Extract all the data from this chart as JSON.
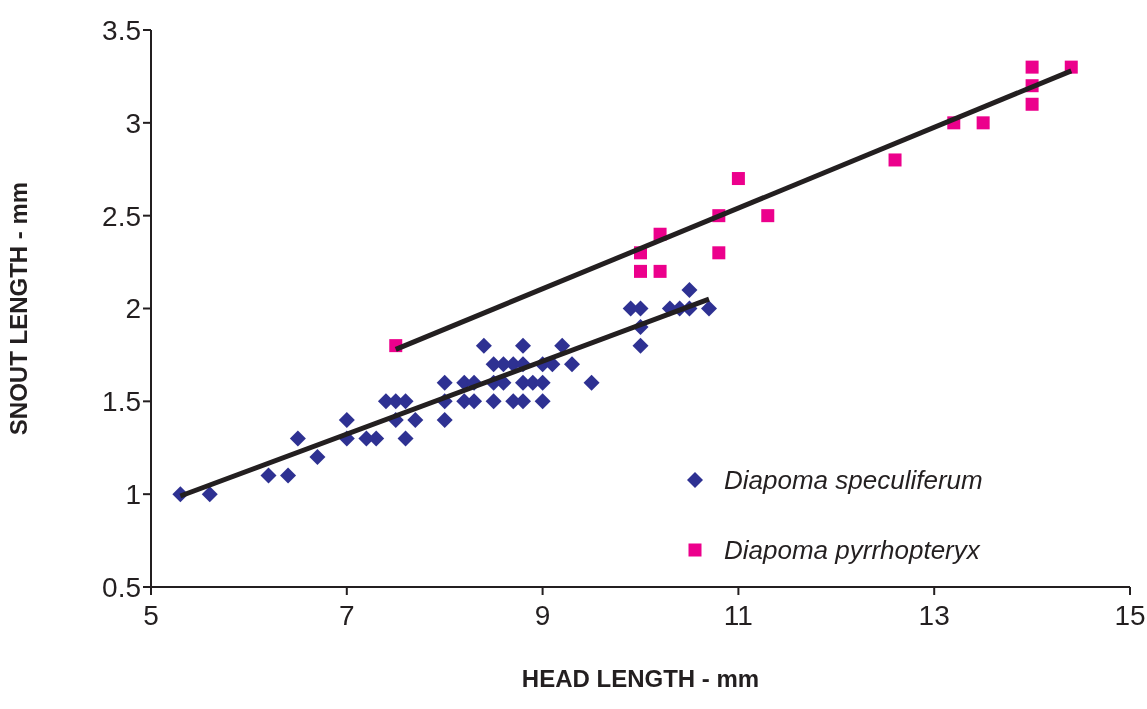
{
  "chart_data": {
    "type": "scatter",
    "xlabel": "HEAD LENGTH - mm",
    "ylabel": "SNOUT LENGTH - mm",
    "xlim": [
      5,
      15
    ],
    "xticks": [
      5,
      7,
      9,
      11,
      13,
      15
    ],
    "ylim": [
      0.5,
      3.5
    ],
    "yticks": [
      0.5,
      1,
      1.5,
      2,
      2.5,
      3,
      3.5
    ],
    "grid": false,
    "legend": "bottom right",
    "series": [
      {
        "name": "Diapoma speculiferum",
        "color": "#2e3192",
        "marker": "diamond",
        "x": [
          5.3,
          5.6,
          6.2,
          6.4,
          6.5,
          6.7,
          7.0,
          7.0,
          7.2,
          7.3,
          7.4,
          7.5,
          7.5,
          7.6,
          7.6,
          7.7,
          8.0,
          8.0,
          8.0,
          8.2,
          8.2,
          8.3,
          8.3,
          8.4,
          8.5,
          8.5,
          8.5,
          8.6,
          8.6,
          8.7,
          8.7,
          8.8,
          8.8,
          8.8,
          8.8,
          8.9,
          9.0,
          9.0,
          9.0,
          9.1,
          9.2,
          9.3,
          9.5,
          9.9,
          10.0,
          10.0,
          10.0,
          10.3,
          10.4,
          10.5,
          10.5,
          10.7
        ],
        "values": [
          1.0,
          1.0,
          1.1,
          1.1,
          1.3,
          1.2,
          1.4,
          1.3,
          1.3,
          1.3,
          1.5,
          1.5,
          1.4,
          1.5,
          1.3,
          1.4,
          1.6,
          1.5,
          1.4,
          1.6,
          1.5,
          1.6,
          1.5,
          1.8,
          1.7,
          1.6,
          1.5,
          1.7,
          1.6,
          1.7,
          1.5,
          1.8,
          1.7,
          1.6,
          1.5,
          1.6,
          1.7,
          1.6,
          1.5,
          1.7,
          1.8,
          1.7,
          1.6,
          2.0,
          2.0,
          1.9,
          1.8,
          2.0,
          2.0,
          2.1,
          2.0,
          2.0
        ]
      },
      {
        "name": "Diapoma pyrrhopteryx",
        "color": "#ec008c",
        "marker": "square",
        "x": [
          7.5,
          10.0,
          10.0,
          10.2,
          10.2,
          10.8,
          10.8,
          11.0,
          11.3,
          12.6,
          13.2,
          13.5,
          14.0,
          14.0,
          14.0,
          14.4
        ],
        "values": [
          1.8,
          2.3,
          2.2,
          2.4,
          2.2,
          2.5,
          2.3,
          2.7,
          2.5,
          2.8,
          3.0,
          3.0,
          3.3,
          3.2,
          3.1,
          3.3
        ]
      },
      {
        "type": "line",
        "color": "#231f20",
        "marker": "none",
        "x": [
          5.3,
          10.7
        ],
        "values": [
          0.99,
          2.05
        ]
      },
      {
        "type": "line",
        "color": "#231f20",
        "marker": "none",
        "x": [
          7.5,
          14.4
        ],
        "values": [
          1.78,
          3.28
        ]
      }
    ]
  }
}
